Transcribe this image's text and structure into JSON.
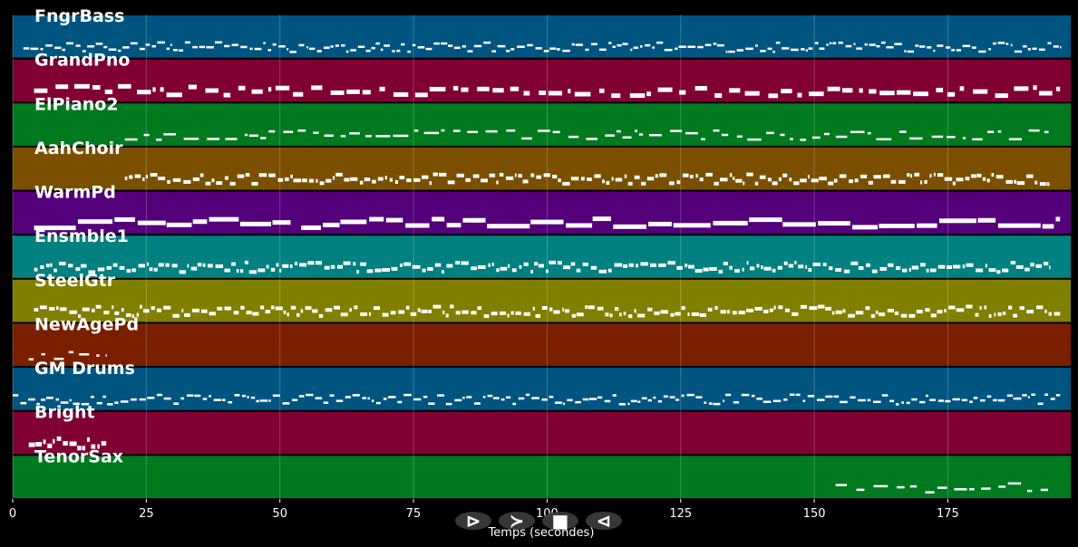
{
  "chart_data": {
    "type": "piano-roll",
    "xlabel": "Temps (secondes)",
    "xlim": [
      0,
      198
    ],
    "x_ticks": [
      0,
      25,
      50,
      75,
      100,
      125,
      150,
      175
    ],
    "grid": true,
    "tracks": [
      {
        "name": "FngrBass",
        "color": "#005580",
        "segments": [
          [
            2,
            196
          ]
        ],
        "density": "dense",
        "thickness": "thin"
      },
      {
        "name": "GrandPno",
        "color": "#800033",
        "segments": [
          [
            4,
            196
          ]
        ],
        "density": "medium",
        "thickness": "thick"
      },
      {
        "name": "ElPiano2",
        "color": "#007a1f",
        "segments": [
          [
            21,
            194
          ]
        ],
        "density": "medium",
        "thickness": "thin"
      },
      {
        "name": "AahChoir",
        "color": "#7a5000",
        "segments": [
          [
            21,
            194
          ]
        ],
        "density": "dense",
        "thickness": "medium"
      },
      {
        "name": "WarmPd",
        "color": "#54007a",
        "segments": [
          [
            4,
            52
          ],
          [
            54,
            196
          ]
        ],
        "density": "sustained",
        "thickness": "thick"
      },
      {
        "name": "Ensmble1",
        "color": "#008080",
        "segments": [
          [
            4,
            194
          ]
        ],
        "density": "dense",
        "thickness": "medium"
      },
      {
        "name": "SteelGtr",
        "color": "#808000",
        "segments": [
          [
            4,
            196
          ]
        ],
        "density": "dense",
        "thickness": "medium"
      },
      {
        "name": "NewAgePd",
        "color": "#7a2000",
        "segments": [
          [
            3,
            17.5
          ]
        ],
        "density": "sparse",
        "thickness": "thin"
      },
      {
        "name": "GM Drums",
        "color": "#005580",
        "segments": [
          [
            0,
            196
          ]
        ],
        "density": "dense",
        "thickness": "thin"
      },
      {
        "name": "Bright",
        "color": "#800033",
        "segments": [
          [
            3,
            17.5
          ]
        ],
        "density": "dense",
        "thickness": "thick"
      },
      {
        "name": "TenorSax",
        "color": "#007a1f",
        "segments": [
          [
            154,
            194
          ]
        ],
        "density": "medium",
        "thickness": "thin"
      }
    ]
  },
  "controls": [
    {
      "name": "play-button",
      "glyph": "⊳"
    },
    {
      "name": "forward-button",
      "glyph": "≻"
    },
    {
      "name": "stop-button",
      "glyph": "■"
    },
    {
      "name": "back-button",
      "glyph": "⊲"
    }
  ]
}
